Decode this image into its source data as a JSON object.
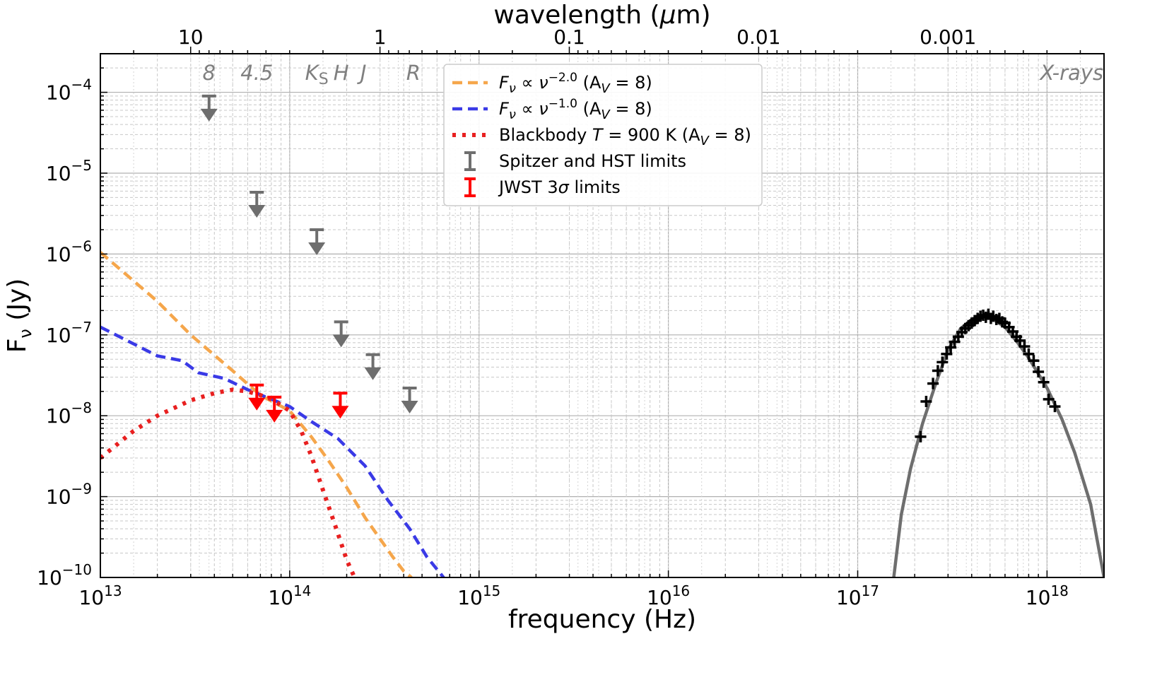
{
  "chart_data": {
    "type": "line",
    "x_scale": "log",
    "y_scale": "log",
    "xlabel": "frequency (Hz)",
    "ylabel": "Fν (Jy)",
    "ylabel_main": "F",
    "ylabel_sub": "ν",
    "ylabel_unit": " (Jy)",
    "top_xlabel": "wavelength (μm)",
    "top_xlabel_prefix": "wavelength (",
    "top_xlabel_mu": "μ",
    "top_xlabel_suffix": "m)",
    "xlim": [
      10000000000000.0,
      2e+18
    ],
    "ylim": [
      1e-10,
      0.0003
    ],
    "grid": true,
    "legend_position": "top-center",
    "x_ticks": [
      {
        "value": 10000000000000.0,
        "base": "10",
        "exp": "13"
      },
      {
        "value": 100000000000000.0,
        "base": "10",
        "exp": "14"
      },
      {
        "value": 1000000000000000.0,
        "base": "10",
        "exp": "15"
      },
      {
        "value": 1e+16,
        "base": "10",
        "exp": "16"
      },
      {
        "value": 1e+17,
        "base": "10",
        "exp": "17"
      },
      {
        "value": 1e+18,
        "base": "10",
        "exp": "18"
      }
    ],
    "y_ticks": [
      {
        "value": 1e-10,
        "base": "10",
        "exp": "−10"
      },
      {
        "value": 1e-09,
        "base": "10",
        "exp": "−9"
      },
      {
        "value": 1e-08,
        "base": "10",
        "exp": "−8"
      },
      {
        "value": 1e-07,
        "base": "10",
        "exp": "−7"
      },
      {
        "value": 1e-06,
        "base": "10",
        "exp": "−6"
      },
      {
        "value": 1e-05,
        "base": "10",
        "exp": "−5"
      },
      {
        "value": 0.0001,
        "base": "10",
        "exp": "−4"
      }
    ],
    "top_ticks": [
      {
        "wavelength_um": 10,
        "label": "10"
      },
      {
        "wavelength_um": 1,
        "label": "1"
      },
      {
        "wavelength_um": 0.1,
        "label": "0.1"
      },
      {
        "wavelength_um": 0.01,
        "label": "0.01"
      },
      {
        "wavelength_um": 0.001,
        "label": "0.001"
      }
    ],
    "band_labels": [
      {
        "text": "8",
        "nu": 37500000000000.0
      },
      {
        "text": "4.5",
        "nu": 67000000000000.0
      },
      {
        "text": "K",
        "sub": "S",
        "nu": 139000000000000.0
      },
      {
        "text": "H",
        "nu": 187000000000000.0
      },
      {
        "text": "J",
        "nu": 245000000000000.0
      },
      {
        "text": "R",
        "nu": 450000000000000.0
      },
      {
        "text": "X-rays",
        "nu": 1.35e+18
      }
    ],
    "series": [
      {
        "name": "Fν ∝ ν^−2.0 (AV = 8)",
        "legend_parts": {
          "pre": "F",
          "sub": "ν",
          "mid": " ∝ ν",
          "sup": "−2.0",
          "post": " (A",
          "sub2": "V",
          "end": " = 8)"
        },
        "color": "#f5a64b",
        "style": "dashed",
        "x": [
          10000000000000.0,
          20000000000000.0,
          30000000000000.0,
          50000000000000.0,
          70000000000000.0,
          100000000000000.0,
          130000000000000.0,
          160000000000000.0,
          200000000000000.0,
          250000000000000.0,
          300000000000000.0,
          350000000000000.0,
          400000000000000.0,
          440000000000000.0
        ],
        "y": [
          1.05e-06,
          2.6e-07,
          1e-07,
          3.6e-08,
          1.8e-08,
          1.15e-08,
          5.5e-09,
          2.8e-09,
          1.3e-09,
          5.5e-10,
          3e-10,
          1.8e-10,
          1.2e-10,
          1e-10
        ]
      },
      {
        "name": "Fν ∝ ν^−1.0 (AV = 8)",
        "legend_parts": {
          "pre": "F",
          "sub": "ν",
          "mid": " ∝ ν",
          "sup": "−1.0",
          "post": " (A",
          "sub2": "V",
          "end": " = 8)"
        },
        "color": "#3a3ae6",
        "style": "dashed",
        "x": [
          10000000000000.0,
          20000000000000.0,
          27000000000000.0,
          33000000000000.0,
          45000000000000.0,
          60000000000000.0,
          80000000000000.0,
          100000000000000.0,
          130000000000000.0,
          180000000000000.0,
          250000000000000.0,
          330000000000000.0,
          430000000000000.0,
          530000000000000.0,
          650000000000000.0
        ],
        "y": [
          1.25e-07,
          5.5e-08,
          4.8e-08,
          3.4e-08,
          2.9e-08,
          2.1e-08,
          1.6e-08,
          1.3e-08,
          8.5e-09,
          5.2e-09,
          2.4e-09,
          9e-10,
          4e-10,
          1.8e-10,
          1e-10
        ]
      },
      {
        "name": "Blackbody T = 900 K (AV = 8)",
        "legend_parts": {
          "pre": "Blackbody ",
          "italic": "T",
          "mid": " = 900 K (A",
          "sub2": "V",
          "end": " = 8)"
        },
        "color": "#e82020",
        "style": "dotted",
        "x": [
          10000000000000.0,
          15000000000000.0,
          20000000000000.0,
          30000000000000.0,
          40000000000000.0,
          50000000000000.0,
          60000000000000.0,
          70000000000000.0,
          80000000000000.0,
          90000000000000.0,
          100000000000000.0,
          115000000000000.0,
          130000000000000.0,
          150000000000000.0,
          175000000000000.0,
          200000000000000.0,
          220000000000000.0
        ],
        "y": [
          3e-09,
          6.5e-09,
          1e-08,
          1.55e-08,
          1.9e-08,
          2.1e-08,
          2e-08,
          1.8e-08,
          1.6e-08,
          1.35e-08,
          1.15e-08,
          6.5e-09,
          3.2e-09,
          1.2e-09,
          4.2e-10,
          1.65e-10,
          1e-10
        ]
      },
      {
        "name": "X-ray model",
        "color": "#6e6e6e",
        "style": "solid",
        "x": [
          1.55e+17,
          1.7e+17,
          1.9e+17,
          2.2e+17,
          2.6e+17,
          3e+17,
          3.5e+17,
          4e+17,
          4.5e+17,
          5e+17,
          6e+17,
          7e+17,
          8e+17,
          9e+17,
          1e+18,
          1.2e+18,
          1.4e+18,
          1.7e+18,
          2e+18
        ],
        "y": [
          1e-10,
          6e-10,
          2.2e-09,
          8e-09,
          2.6e-08,
          6.5e-08,
          1.2e-07,
          1.55e-07,
          1.7e-07,
          1.65e-07,
          1.25e-07,
          8e-08,
          5.2e-08,
          3.3e-08,
          2.2e-08,
          9e-09,
          3.5e-09,
          8e-10,
          1e-10
        ]
      }
    ],
    "xray_data": {
      "name": "X-ray data",
      "color": "#000000",
      "x": [
        2.15e+17,
        2.3e+17,
        2.5e+17,
        2.65e+17,
        2.8e+17,
        2.95e+17,
        3.1e+17,
        3.25e+17,
        3.4e+17,
        3.55e+17,
        3.7e+17,
        3.85e+17,
        4e+17,
        4.15e+17,
        4.3e+17,
        4.45e+17,
        4.6e+17,
        4.75e+17,
        4.9e+17,
        5.05e+17,
        5.2e+17,
        5.4e+17,
        5.6e+17,
        5.8e+17,
        6e+17,
        6.3e+17,
        6.6e+17,
        6.9e+17,
        7.2e+17,
        7.6e+17,
        8e+17,
        8.5e+17,
        9e+17,
        9.6e+17,
        1.02e+18,
        1.1e+18
      ],
      "y": [
        5.5e-09,
        1.5e-08,
        2.5e-08,
        3.6e-08,
        4.6e-08,
        5.8e-08,
        7e-08,
        8.2e-08,
        9.5e-08,
        1.08e-07,
        1.2e-07,
        1.3e-07,
        1.4e-07,
        1.5e-07,
        1.6e-07,
        1.7e-07,
        1.75e-07,
        1.65e-07,
        1.8e-07,
        1.6e-07,
        1.7e-07,
        1.55e-07,
        1.6e-07,
        1.45e-07,
        1.4e-07,
        1.25e-07,
        1.1e-07,
        9.5e-08,
        8.5e-08,
        7.2e-08,
        5.8e-08,
        4.8e-08,
        3.5e-08,
        2.6e-08,
        1.6e-08,
        1.3e-08
      ]
    },
    "upper_limits": [
      {
        "group": "Spitzer and HST limits",
        "color": "#6e6e6e",
        "nu": 37500000000000.0,
        "flux": 9e-05
      },
      {
        "group": "Spitzer and HST limits",
        "color": "#6e6e6e",
        "nu": 67000000000000.0,
        "flux": 5.8e-06
      },
      {
        "group": "Spitzer and HST limits",
        "color": "#6e6e6e",
        "nu": 139000000000000.0,
        "flux": 2e-06
      },
      {
        "group": "Spitzer and HST limits",
        "color": "#6e6e6e",
        "nu": 187000000000000.0,
        "flux": 1.45e-07
      },
      {
        "group": "Spitzer and HST limits",
        "color": "#6e6e6e",
        "nu": 275000000000000.0,
        "flux": 5.7e-08
      },
      {
        "group": "Spitzer and HST limits",
        "color": "#6e6e6e",
        "nu": 430000000000000.0,
        "flux": 2.2e-08
      },
      {
        "group": "JWST 3σ limits",
        "color": "#ff0000",
        "nu": 67000000000000.0,
        "flux": 2.4e-08
      },
      {
        "group": "JWST 3σ limits",
        "color": "#ff0000",
        "nu": 83000000000000.0,
        "flux": 1.7e-08
      },
      {
        "group": "JWST 3σ limits",
        "color": "#ff0000",
        "nu": 185000000000000.0,
        "flux": 1.9e-08
      }
    ],
    "legend_limits": [
      {
        "label_pre": "Spitzer and HST limits",
        "label_sigma": "",
        "label_post": "",
        "color": "#6e6e6e"
      },
      {
        "label_pre": "JWST 3",
        "label_sigma": "σ",
        "label_post": " limits",
        "color": "#ff0000"
      }
    ]
  }
}
